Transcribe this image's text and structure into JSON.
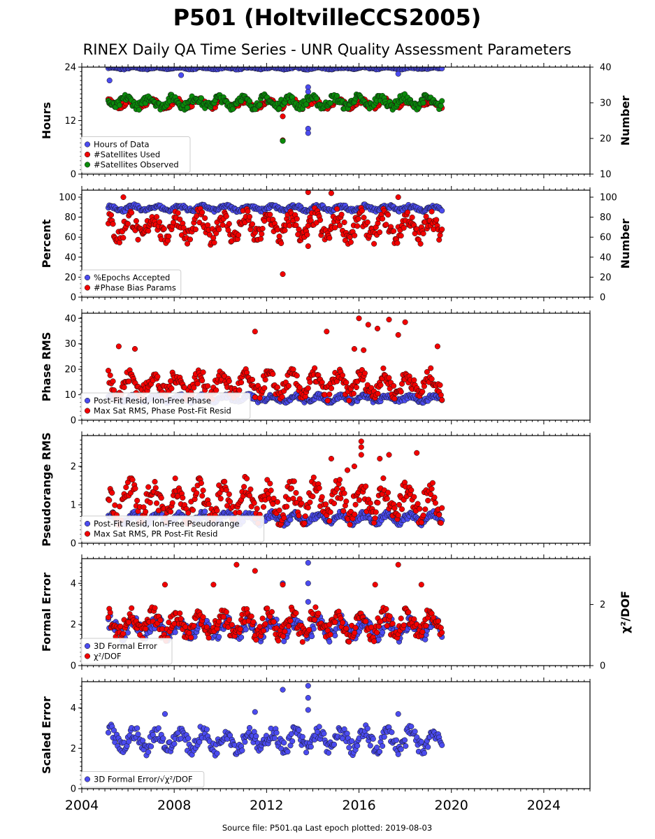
{
  "title": "P501 (HoltvilleCCS2005)",
  "subtitle": "RINEX Daily QA Time Series - UNR Quality Assessment Parameters",
  "source_line": "Source file: P501.qa Last epoch plotted: 2019-08-03",
  "x_axis": {
    "range": [
      2004,
      2026
    ],
    "ticks": [
      "2004",
      "2008",
      "2012",
      "2016",
      "2020",
      "2024"
    ]
  },
  "colors": {
    "blue": "#4b4bef",
    "red": "#f20000",
    "green": "#0a8a0a"
  },
  "chart_data": [
    {
      "type": "scatter",
      "ylabel": "Hours",
      "y2label": "Number",
      "ylim": [
        0,
        24
      ],
      "y2lim": [
        10,
        40
      ],
      "yticks": [
        "0",
        "12",
        "24"
      ],
      "y2ticks": [
        "10",
        "20",
        "30",
        "40"
      ],
      "legend": [
        "Hours of Data",
        "#Satellites Used",
        "#Satellites Observed"
      ],
      "legend_position": "lower-left",
      "series": [
        {
          "name": "Hours of Data",
          "axis": "left",
          "color": "blue",
          "band": [
            23.5,
            24
          ],
          "extras": [
            [
              2005.2,
              21
            ],
            [
              2008.3,
              22.2
            ],
            [
              2013.8,
              19.5
            ],
            [
              2013.8,
              18.5
            ],
            [
              2013.8,
              16.8
            ],
            [
              2013.8,
              10.2
            ],
            [
              2013.8,
              9.2
            ],
            [
              2012.7,
              7.5
            ],
            [
              2017.7,
              22.5
            ]
          ]
        },
        {
          "name": "#Satellites Used",
          "axis": "right",
          "color": "red",
          "band": [
            28.5,
            31
          ],
          "extras": [
            [
              2012.7,
              26.2
            ],
            [
              2012.7,
              19.5
            ]
          ]
        },
        {
          "name": "#Satellites Observed",
          "axis": "right",
          "color": "green",
          "band": [
            28.5,
            32
          ],
          "extras": [
            [
              2012.7,
              19.3
            ]
          ]
        }
      ]
    },
    {
      "type": "scatter",
      "ylabel": "Percent",
      "y2label": "Number",
      "ylim": [
        0,
        107
      ],
      "y2lim": [
        0,
        107
      ],
      "yticks": [
        "0",
        "20",
        "40",
        "60",
        "80",
        "100"
      ],
      "y2ticks": [
        "0",
        "20",
        "40",
        "60",
        "80",
        "100"
      ],
      "legend": [
        "%Epochs Accepted",
        "#Phase Bias Params"
      ],
      "legend_position": "lower-left",
      "series": [
        {
          "name": "%Epochs Accepted",
          "axis": "left",
          "color": "blue",
          "band": [
            86,
            92
          ],
          "extras": []
        },
        {
          "name": "#Phase Bias Params",
          "axis": "right",
          "color": "red",
          "band": [
            55,
            85
          ],
          "extras": [
            [
              2013.8,
              105
            ],
            [
              2014.8,
              104
            ],
            [
              2017.7,
              100
            ],
            [
              2012.7,
              23
            ],
            [
              2013.8,
              51
            ],
            [
              2005.8,
              100
            ]
          ]
        }
      ]
    },
    {
      "type": "scatter",
      "ylabel": "Phase RMS",
      "ylim": [
        0,
        42
      ],
      "yticks": [
        "0",
        "10",
        "20",
        "30",
        "40"
      ],
      "legend": [
        "Post-Fit Resid, Ion-Free Phase",
        "Max Sat RMS, Phase Post-Fit Resid"
      ],
      "legend_position": "lower-left",
      "series": [
        {
          "name": "Post-Fit Resid, Ion-Free Phase",
          "axis": "left",
          "color": "blue",
          "band": [
            7,
            10
          ],
          "extras": []
        },
        {
          "name": "Max Sat RMS, Phase Post-Fit Resid",
          "axis": "left",
          "color": "red",
          "band": [
            9,
            19
          ],
          "extras": [
            [
              2016.0,
              40
            ],
            [
              2016.4,
              37.5
            ],
            [
              2017.3,
              39.5
            ],
            [
              2018.0,
              38.5
            ],
            [
              2014.6,
              34.8
            ],
            [
              2011.5,
              34.8
            ],
            [
              2016.8,
              36
            ],
            [
              2017.7,
              33.5
            ],
            [
              2005.6,
              29
            ],
            [
              2006.3,
              28
            ],
            [
              2019.4,
              29
            ],
            [
              2015.8,
              28
            ],
            [
              2016.2,
              27.5
            ]
          ]
        }
      ]
    },
    {
      "type": "scatter",
      "ylabel": "Pseudorange RMS",
      "ylim": [
        0,
        2.8
      ],
      "yticks": [
        "0",
        "1",
        "2"
      ],
      "legend": [
        "Post-Fit Resid, Ion-Free Pseudorange",
        "Max Sat RMS, PR Post-Fit Resid"
      ],
      "legend_position": "lower-left",
      "series": [
        {
          "name": "Post-Fit Resid, Ion-Free Pseudorange",
          "axis": "left",
          "color": "blue",
          "band": [
            0.5,
            0.8
          ],
          "extras": []
        },
        {
          "name": "Max Sat RMS, PR Post-Fit Resid",
          "axis": "left",
          "color": "red",
          "band": [
            0.6,
            1.6
          ],
          "extras": [
            [
              2016.1,
              2.65
            ],
            [
              2016.1,
              2.5
            ],
            [
              2016.1,
              2.3
            ],
            [
              2015.8,
              2.0
            ],
            [
              2014.8,
              2.2
            ],
            [
              2017.3,
              2.3
            ],
            [
              2018.5,
              2.35
            ],
            [
              2016.9,
              2.2
            ],
            [
              2015.5,
              1.9
            ]
          ]
        }
      ]
    },
    {
      "type": "scatter",
      "ylabel": "Formal Error",
      "y2label": "χ²/DOF",
      "ylim": [
        0,
        5.2
      ],
      "y2lim": [
        0,
        3.5
      ],
      "yticks": [
        "0",
        "2",
        "4"
      ],
      "y2ticks": [
        "0",
        "2"
      ],
      "legend": [
        "3D Formal Error",
        "χ²/DOF"
      ],
      "legend_position": "lower-left",
      "series": [
        {
          "name": "3D Formal Error",
          "axis": "left",
          "color": "blue",
          "band": [
            1.3,
            2.3
          ],
          "extras": [
            [
              2013.8,
              5
            ],
            [
              2013.8,
              4.0
            ],
            [
              2012.7,
              4.0
            ],
            [
              2013.8,
              3.1
            ]
          ]
        },
        {
          "name": "χ²/DOF",
          "axis": "right",
          "color": "red",
          "band": [
            0.9,
            1.8
          ],
          "extras": [
            [
              2010.7,
              3.3
            ],
            [
              2011.5,
              3.1
            ],
            [
              2017.7,
              3.3
            ],
            [
              2009.7,
              2.65
            ],
            [
              2016.7,
              2.65
            ],
            [
              2018.7,
              2.65
            ],
            [
              2007.6,
              2.65
            ],
            [
              2012.7,
              2.65
            ]
          ]
        }
      ]
    },
    {
      "type": "scatter",
      "ylabel": "Scaled Error",
      "ylim": [
        0,
        5.3
      ],
      "yticks": [
        "0",
        "2",
        "4"
      ],
      "legend": [
        "3D Formal Error/√χ²/DOF"
      ],
      "legend_position": "lower-left",
      "series": [
        {
          "name": "3D Formal Error/√χ²/DOF",
          "axis": "left",
          "color": "blue",
          "band": [
            1.8,
            3.0
          ],
          "extras": [
            [
              2013.8,
              5.1
            ],
            [
              2012.7,
              4.9
            ],
            [
              2013.8,
              4.5
            ],
            [
              2013.8,
              3.9
            ],
            [
              2011.5,
              3.8
            ],
            [
              2017.7,
              3.7
            ],
            [
              2007.6,
              3.7
            ]
          ]
        }
      ]
    }
  ]
}
